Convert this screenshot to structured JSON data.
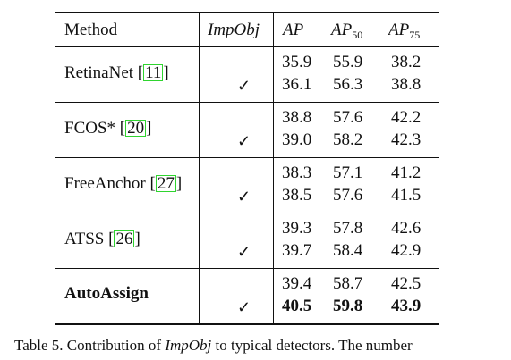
{
  "header": {
    "method": "Method",
    "impobj": "ImpObj",
    "ap": "AP",
    "ap50_base": "AP",
    "ap50_sub": "50",
    "ap75_base": "AP",
    "ap75_sub": "75"
  },
  "rows": [
    {
      "method_name": "RetinaNet",
      "ref": "11",
      "bold": false,
      "values": [
        {
          "checked": false,
          "ap": "35.9",
          "ap50": "55.9",
          "ap75": "38.2"
        },
        {
          "checked": true,
          "ap": "36.1",
          "ap50": "56.3",
          "ap75": "38.8"
        }
      ]
    },
    {
      "method_name": "FCOS*",
      "ref": "20",
      "bold": false,
      "values": [
        {
          "checked": false,
          "ap": "38.8",
          "ap50": "57.6",
          "ap75": "42.2"
        },
        {
          "checked": true,
          "ap": "39.0",
          "ap50": "58.2",
          "ap75": "42.3"
        }
      ]
    },
    {
      "method_name": "FreeAnchor",
      "ref": "27",
      "bold": false,
      "values": [
        {
          "checked": false,
          "ap": "38.3",
          "ap50": "57.1",
          "ap75": "41.2"
        },
        {
          "checked": true,
          "ap": "38.5",
          "ap50": "57.6",
          "ap75": "41.5"
        }
      ]
    },
    {
      "method_name": "ATSS",
      "ref": "26",
      "bold": false,
      "values": [
        {
          "checked": false,
          "ap": "39.3",
          "ap50": "57.8",
          "ap75": "42.6"
        },
        {
          "checked": true,
          "ap": "39.7",
          "ap50": "58.4",
          "ap75": "42.9"
        }
      ]
    },
    {
      "method_name": "AutoAssign",
      "ref": "",
      "bold": true,
      "values": [
        {
          "checked": false,
          "ap": "39.4",
          "ap50": "58.7",
          "ap75": "42.5"
        },
        {
          "checked": true,
          "ap": "40.5",
          "ap50": "59.8",
          "ap75": "43.9",
          "bold": true
        }
      ]
    }
  ],
  "check_glyph": "✓",
  "caption": {
    "prefix": "Table 5. Contribution of ",
    "italic": "ImpObj",
    "suffix": " to typical detectors. The number"
  }
}
